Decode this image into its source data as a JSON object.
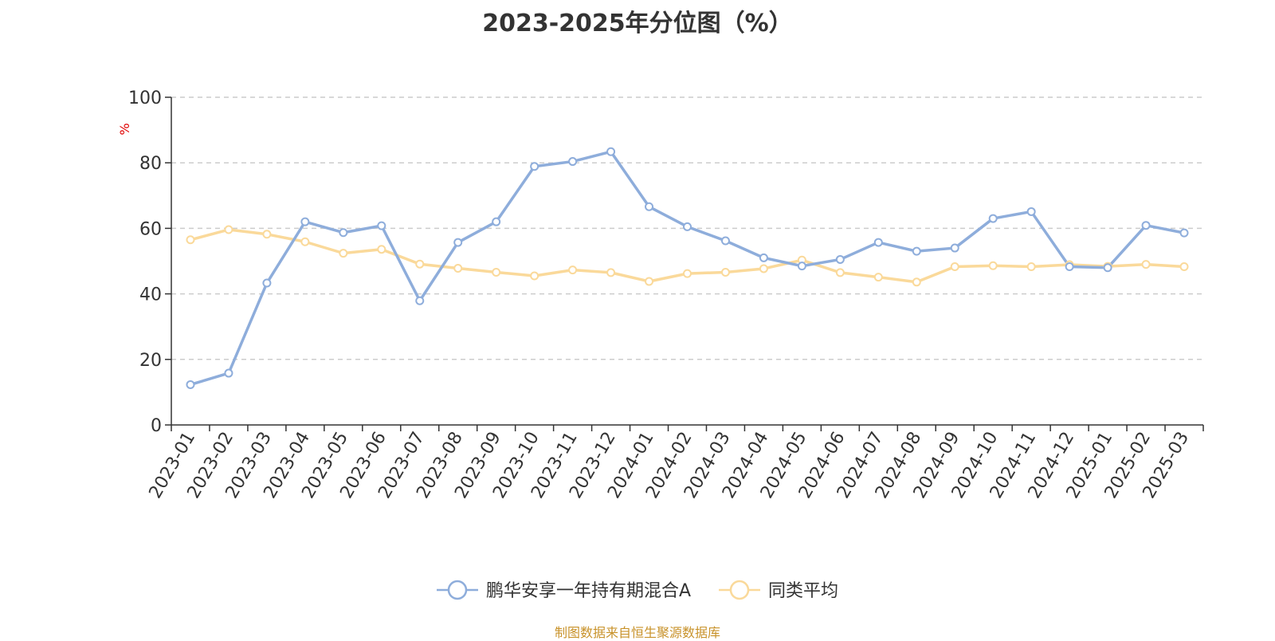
{
  "chart_data": {
    "type": "line",
    "title": "2023-2025年分位图（%）",
    "ylabel": "%",
    "ylim": [
      0,
      100
    ],
    "yticks": [
      0,
      20,
      40,
      60,
      80,
      100
    ],
    "grid": true,
    "legend_position": "bottom-center",
    "categories": [
      "2023-01",
      "2023-02",
      "2023-03",
      "2023-04",
      "2023-05",
      "2023-06",
      "2023-07",
      "2023-08",
      "2023-09",
      "2023-10",
      "2023-11",
      "2023-12",
      "2024-01",
      "2024-02",
      "2024-03",
      "2024-04",
      "2024-05",
      "2024-06",
      "2024-07",
      "2024-08",
      "2024-09",
      "2024-10",
      "2024-11",
      "2024-12",
      "2025-01",
      "2025-02",
      "2025-03"
    ],
    "series": [
      {
        "name": "鹏华安享一年持有期混合A",
        "color": "#8eaddb",
        "values": [
          12.3,
          15.8,
          43.3,
          62.0,
          58.7,
          60.8,
          37.9,
          55.7,
          62.0,
          78.9,
          80.4,
          83.4,
          66.6,
          60.5,
          56.2,
          51.0,
          48.5,
          50.5,
          55.7,
          53.0,
          54.0,
          63.0,
          65.1,
          48.3,
          48.0,
          60.9,
          58.6
        ]
      },
      {
        "name": "同类平均",
        "color": "#fad99a",
        "values": [
          56.5,
          59.6,
          58.2,
          55.9,
          52.4,
          53.6,
          49.1,
          47.8,
          46.6,
          45.5,
          47.3,
          46.5,
          43.8,
          46.2,
          46.6,
          47.7,
          50.3,
          46.5,
          45.1,
          43.6,
          48.3,
          48.6,
          48.3,
          48.9,
          48.4,
          49.0,
          48.3
        ]
      }
    ]
  },
  "styles": {
    "unit_color": "#e00000",
    "source_color": "#c8922a",
    "grid_color": "#cccccc",
    "axis_color": "#333333"
  },
  "source_note": "制图数据来自恒生聚源数据库"
}
